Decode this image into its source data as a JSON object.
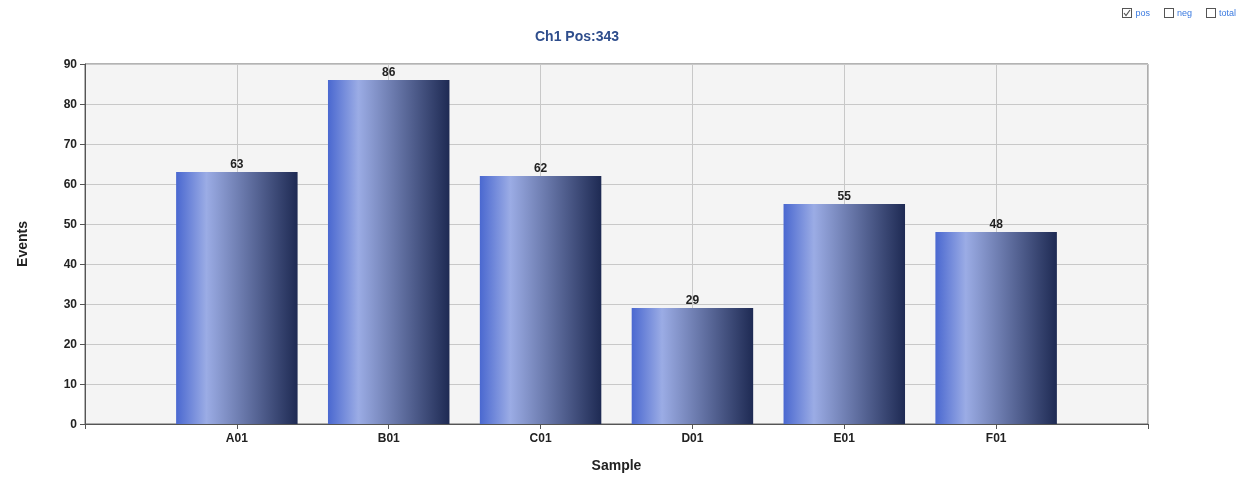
{
  "chart_data": {
    "type": "bar",
    "title": "Ch1 Pos:343",
    "xlabel": "Sample",
    "ylabel": "Events",
    "categories": [
      null,
      "A01",
      "B01",
      "C01",
      "D01",
      "E01",
      "F01",
      null
    ],
    "values": [
      null,
      63,
      86,
      62,
      29,
      55,
      48,
      null
    ],
    "color": "#4a68d0",
    "ylim": [
      0,
      90
    ],
    "yticks": [
      0,
      10,
      20,
      30,
      40,
      50,
      60,
      70,
      80,
      90
    ],
    "grid": true,
    "data_labels": true,
    "annotations": [
      "pos",
      "neg",
      "total"
    ]
  }
}
